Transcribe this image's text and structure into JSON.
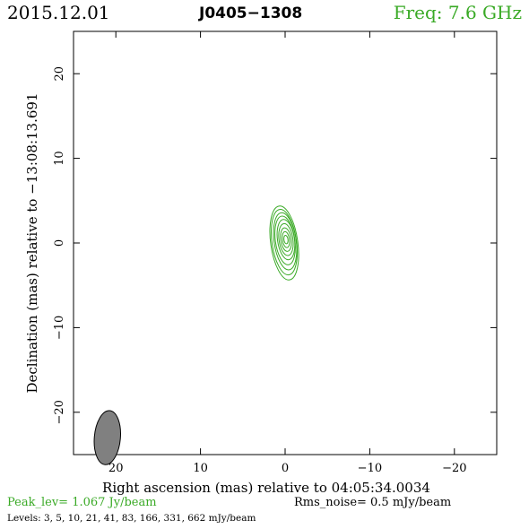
{
  "header": {
    "date": "2015.12.01",
    "source": "J0405−1308",
    "frequency": "Freq: 7.6 GHz"
  },
  "footer": {
    "peak": "Peak_lev=  1.067 Jy/beam",
    "rms": "Rms_noise=  0.5 mJy/beam",
    "levels": "Levels:   3,   5,  10,  21,  41,  83, 166, 331, 662 mJy/beam"
  },
  "colors": {
    "contour": "#3aaa26",
    "beam": "#808080",
    "axes": "#000000"
  },
  "chart_data": {
    "type": "contour",
    "title": "",
    "xlabel": "Right ascension (mas) relative to 04:05:34.0034",
    "ylabel": "Declination (mas) relative to −13:08:13.691",
    "xlim": [
      25,
      -25
    ],
    "ylim": [
      -25,
      25
    ],
    "x_ticks": [
      20,
      10,
      0,
      -10,
      -20
    ],
    "x_tick_labels": [
      "20",
      "10",
      "0",
      "−10",
      "−20"
    ],
    "y_ticks": [
      20,
      10,
      0,
      -10,
      -20
    ],
    "y_tick_labels": [
      "20",
      "10",
      "0",
      "−10",
      "−20"
    ],
    "levels_mJy": [
      3,
      5,
      10,
      21,
      41,
      83,
      166,
      331,
      662
    ],
    "contours": [
      {
        "level": 3,
        "x": 0.1,
        "y": 0.0,
        "a": 4.4,
        "b": 1.6,
        "pa": 8
      },
      {
        "level": 5,
        "x": 0.1,
        "y": 0.1,
        "a": 3.9,
        "b": 1.45,
        "pa": 8
      },
      {
        "level": 10,
        "x": 0.0,
        "y": 0.2,
        "a": 3.4,
        "b": 1.3,
        "pa": 8
      },
      {
        "level": 21,
        "x": 0.0,
        "y": 0.3,
        "a": 2.9,
        "b": 1.15,
        "pa": 8
      },
      {
        "level": 41,
        "x": -0.1,
        "y": 0.4,
        "a": 2.4,
        "b": 1.0,
        "pa": 8
      },
      {
        "level": 83,
        "x": -0.1,
        "y": 0.4,
        "a": 1.9,
        "b": 0.82,
        "pa": 8
      },
      {
        "level": 166,
        "x": -0.1,
        "y": 0.4,
        "a": 1.4,
        "b": 0.62,
        "pa": 8
      },
      {
        "level": 331,
        "x": -0.1,
        "y": 0.4,
        "a": 0.95,
        "b": 0.42,
        "pa": 8
      },
      {
        "level": 662,
        "x": -0.1,
        "y": 0.4,
        "a": 0.5,
        "b": 0.24,
        "pa": 8
      }
    ],
    "beam": {
      "x": 21.0,
      "y": -23.0,
      "major": 3.2,
      "minor": 1.4,
      "pa": -5
    }
  }
}
